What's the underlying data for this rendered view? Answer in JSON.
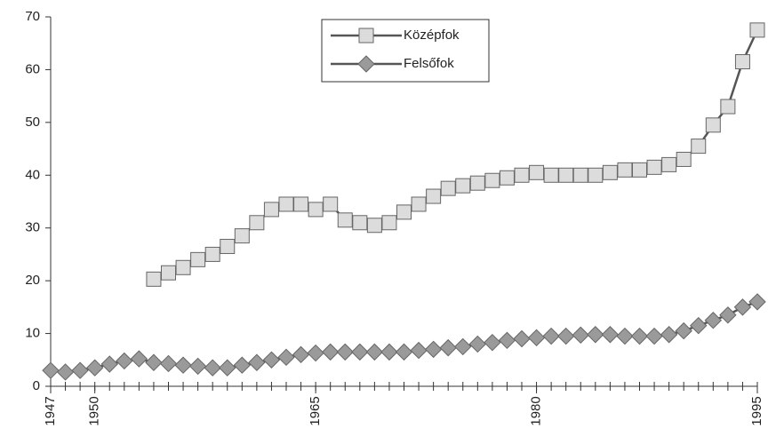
{
  "chart_data": {
    "type": "line",
    "x": [
      1947,
      1948,
      1949,
      1950,
      1951,
      1952,
      1953,
      1954,
      1955,
      1956,
      1957,
      1958,
      1959,
      1960,
      1961,
      1962,
      1963,
      1964,
      1965,
      1966,
      1967,
      1968,
      1969,
      1970,
      1971,
      1972,
      1973,
      1974,
      1975,
      1976,
      1977,
      1978,
      1979,
      1980,
      1981,
      1982,
      1983,
      1984,
      1985,
      1986,
      1987,
      1988,
      1989,
      1990,
      1991,
      1992,
      1993,
      1994,
      1995
    ],
    "series": [
      {
        "name": "Középfok",
        "color": "#dcdcdc",
        "marker": "square",
        "values": [
          null,
          null,
          null,
          null,
          null,
          null,
          null,
          20.3,
          21.5,
          22.5,
          24,
          25,
          26.5,
          28.5,
          31,
          33.5,
          34.5,
          34.5,
          33.5,
          34.5,
          31.5,
          31,
          30.5,
          31,
          33,
          34.5,
          36,
          37.5,
          38,
          38.5,
          39,
          39.5,
          40,
          40.5,
          40,
          40,
          40,
          40,
          40.5,
          41,
          41,
          41.5,
          42,
          43,
          45.5,
          49.5,
          53,
          61.5,
          67.5
        ]
      },
      {
        "name": "Felsőfok",
        "color": "#9a9a9a",
        "marker": "diamond",
        "values": [
          3,
          2.7,
          3,
          3.5,
          4.2,
          4.8,
          5.2,
          4.5,
          4.3,
          4,
          3.8,
          3.5,
          3.5,
          4,
          4.5,
          5,
          5.5,
          6,
          6.3,
          6.5,
          6.5,
          6.5,
          6.5,
          6.5,
          6.5,
          6.8,
          7,
          7.3,
          7.5,
          8,
          8.3,
          8.7,
          9,
          9.2,
          9.5,
          9.5,
          9.7,
          9.8,
          9.8,
          9.5,
          9.5,
          9.5,
          9.8,
          10.5,
          11.5,
          12.5,
          13.5,
          15,
          16
        ]
      }
    ],
    "xlim": [
      1947,
      1995
    ],
    "xticks": [
      1947,
      1950,
      1965,
      1980,
      1995
    ],
    "ylim": [
      0,
      70
    ],
    "yticks": [
      0,
      10,
      20,
      30,
      40,
      50,
      60,
      70
    ],
    "grid": false,
    "legend": "top"
  }
}
